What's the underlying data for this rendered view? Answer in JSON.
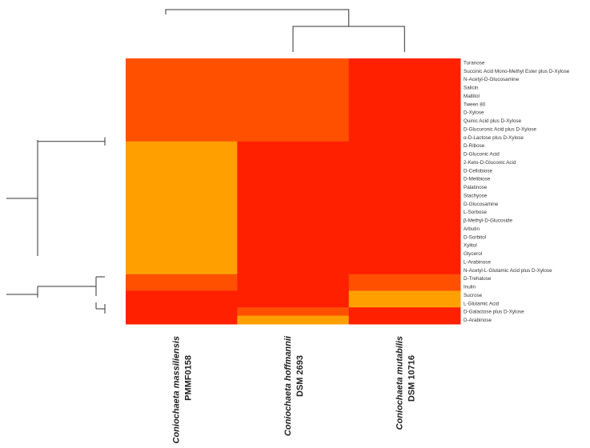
{
  "chart_data": {
    "type": "heatmap",
    "rows": [
      "Turanose",
      "Succinic Acid Mono-Methyl Ester plus D-Xylose",
      "N-Acetyl-D-Glucosamine",
      "Salicin",
      "Maltitol",
      "Tween 80",
      "D-Xylose",
      "Quinic Acid plus D-Xylose",
      "D-Glucuronic Acid plus D-Xylose",
      "α-D-Lactose plus D-Xylose",
      "D-Ribose",
      "D-Gluconic Acid",
      "2-Keto-D-Gluconic Acid",
      "D-Cellobiose",
      "D-Melibiose",
      "Palatinose",
      "Stachyose",
      "D-Glucosamine",
      "L-Sorbose",
      "β-Methyl-D-Glucoside",
      "Arbutin",
      "D-Sorbitol",
      "Xylitol",
      "Glycerol",
      "L-Arabinose",
      "N-Acetyl-L-Glutamic Acid plus D-Xylose",
      "D-Trehalose",
      "Inulin",
      "Sucrose",
      "L-Glutamic Acid",
      "D-Galactose plus D-Xylose",
      "D-Arabinose"
    ],
    "columns": [
      {
        "name": "Coniochaeta massiliensis",
        "id": "PMMF0158"
      },
      {
        "name": "Coniochaeta hoffmannii",
        "id": "DSM 2693"
      },
      {
        "name": "Coniochaeta mutabilis",
        "id": "DSM 10716"
      }
    ],
    "levels": {
      "1": "#ff2000",
      "2": "#ff5000",
      "3": "#ffa000"
    },
    "values": [
      [
        2,
        2,
        1
      ],
      [
        2,
        2,
        1
      ],
      [
        2,
        2,
        1
      ],
      [
        2,
        2,
        1
      ],
      [
        2,
        2,
        1
      ],
      [
        2,
        2,
        1
      ],
      [
        2,
        2,
        1
      ],
      [
        2,
        2,
        1
      ],
      [
        2,
        2,
        1
      ],
      [
        2,
        2,
        1
      ],
      [
        3,
        1,
        1
      ],
      [
        3,
        1,
        1
      ],
      [
        3,
        1,
        1
      ],
      [
        3,
        1,
        1
      ],
      [
        3,
        1,
        1
      ],
      [
        3,
        1,
        1
      ],
      [
        3,
        1,
        1
      ],
      [
        3,
        1,
        1
      ],
      [
        3,
        1,
        1
      ],
      [
        3,
        1,
        1
      ],
      [
        3,
        1,
        1
      ],
      [
        3,
        1,
        1
      ],
      [
        3,
        1,
        1
      ],
      [
        3,
        1,
        1
      ],
      [
        3,
        1,
        1
      ],
      [
        3,
        1,
        1
      ],
      [
        2,
        1,
        2
      ],
      [
        2,
        1,
        2
      ],
      [
        1,
        1,
        3
      ],
      [
        1,
        1,
        3
      ],
      [
        1,
        2,
        1
      ],
      [
        1,
        3,
        1
      ]
    ],
    "top_dendrogram": {
      "merges": [
        [
          1,
          2
        ],
        [
          0,
          "merge0"
        ]
      ]
    },
    "left_dendrogram": {
      "groups": [
        [
          0,
          10
        ],
        [
          11,
          25
        ],
        [
          26,
          27
        ],
        [
          28,
          31
        ]
      ]
    }
  }
}
